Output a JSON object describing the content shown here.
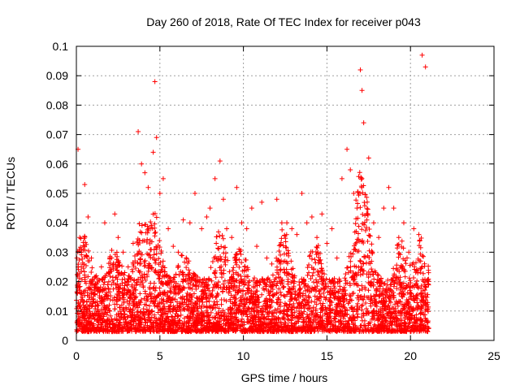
{
  "chart_data": {
    "type": "scatter",
    "title": "Day 260 of 2018, Rate Of TEC Index for receiver p043",
    "xlabel": "GPS time / hours",
    "ylabel": "ROTI / TECUs",
    "xlim": [
      0,
      25
    ],
    "ylim": [
      0,
      0.1
    ],
    "x_ticks": [
      "0",
      "5",
      "10",
      "15",
      "20",
      "25"
    ],
    "y_ticks": [
      "0",
      "0.01",
      "0.02",
      "0.03",
      "0.04",
      "0.05",
      "0.06",
      "0.07",
      "0.08",
      "0.09",
      "0.1"
    ],
    "grid": true,
    "marker": "+",
    "color": "#ff0000",
    "x_coverage": [
      0,
      21.1
    ],
    "series": [
      {
        "x": [
          0.1,
          0.2,
          0.3,
          0.5,
          0.7,
          0.9,
          1.2,
          1.5,
          1.7,
          2.0,
          2.3,
          2.5,
          2.8,
          3.1,
          3.4,
          3.7,
          3.9,
          4.1,
          4.3,
          4.6,
          4.7,
          4.8,
          5.0,
          5.2,
          5.5,
          5.8,
          6.1,
          6.4,
          6.8,
          7.1,
          7.5,
          7.8,
          8.0,
          8.3,
          8.6,
          8.8,
          9.0,
          9.3,
          9.6,
          9.9,
          10.2,
          10.5,
          10.8,
          11.1,
          11.4,
          11.7,
          12.0,
          12.3,
          12.6,
          12.9,
          13.2,
          13.5,
          13.8,
          14.1,
          14.4,
          14.7,
          15.0,
          15.3,
          15.6,
          15.9,
          16.2,
          16.4,
          16.6,
          16.8,
          17.0,
          17.1,
          17.2,
          17.5,
          17.8,
          18.1,
          18.4,
          18.7,
          19.0,
          19.3,
          19.6,
          19.9,
          20.2,
          20.5,
          20.7,
          20.9
        ],
        "y": [
          0.065,
          0.035,
          0.03,
          0.053,
          0.042,
          0.028,
          0.022,
          0.025,
          0.04,
          0.028,
          0.043,
          0.035,
          0.03,
          0.025,
          0.033,
          0.071,
          0.06,
          0.057,
          0.052,
          0.064,
          0.088,
          0.069,
          0.05,
          0.055,
          0.038,
          0.032,
          0.03,
          0.041,
          0.04,
          0.05,
          0.038,
          0.042,
          0.045,
          0.055,
          0.061,
          0.048,
          0.038,
          0.035,
          0.052,
          0.04,
          0.038,
          0.045,
          0.032,
          0.047,
          0.028,
          0.026,
          0.048,
          0.04,
          0.04,
          0.038,
          0.036,
          0.05,
          0.04,
          0.042,
          0.035,
          0.043,
          0.033,
          0.038,
          0.028,
          0.055,
          0.065,
          0.058,
          0.05,
          0.045,
          0.092,
          0.085,
          0.074,
          0.062,
          0.04,
          0.035,
          0.045,
          0.052,
          0.045,
          0.035,
          0.04,
          0.03,
          0.038,
          0.036,
          0.097,
          0.093
        ]
      }
    ]
  }
}
